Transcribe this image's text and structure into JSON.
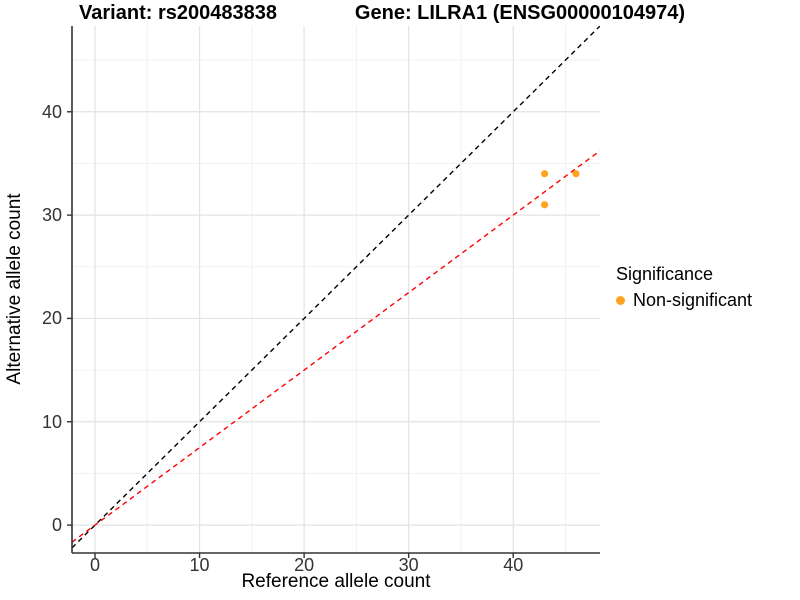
{
  "title": {
    "variant": "Variant: rs200483838",
    "gene": "Gene: LILRA1 (ENSG00000104974)"
  },
  "chart_data": {
    "type": "scatter",
    "xlabel": "Reference allele count",
    "ylabel": "Alternative allele count",
    "xlim": [
      -2.2,
      48.3
    ],
    "ylim": [
      -2.7,
      48.3
    ],
    "xticks": [
      0,
      10,
      20,
      30,
      40
    ],
    "yticks": [
      0,
      10,
      20,
      30,
      40
    ],
    "xticks_minor": [
      5,
      15,
      25,
      35,
      45
    ],
    "yticks_minor": [
      5,
      15,
      25,
      35,
      45
    ],
    "series": [
      {
        "name": "Non-significant",
        "color": "#FFA41E",
        "points": [
          {
            "x": 43,
            "y": 34
          },
          {
            "x": 46,
            "y": 34
          },
          {
            "x": 43,
            "y": 31
          }
        ]
      }
    ],
    "reference_lines": [
      {
        "name": "identity",
        "slope": 1,
        "intercept": 0,
        "color": "#000000",
        "style": "dashed"
      },
      {
        "name": "fitted-ratio",
        "slope": 0.75,
        "intercept": 0,
        "color": "#FF0000",
        "style": "dashed"
      }
    ],
    "legend": {
      "title": "Significance",
      "position": "right",
      "items": [
        {
          "label": "Non-significant",
          "color": "#FFA41E"
        }
      ]
    },
    "grid": "on",
    "colors": {
      "background": "#FFFFFF",
      "grid_major": "#E3E3E3",
      "grid_minor": "#F1F1F1",
      "axis": "#333333",
      "tick_text": "#333333"
    }
  }
}
